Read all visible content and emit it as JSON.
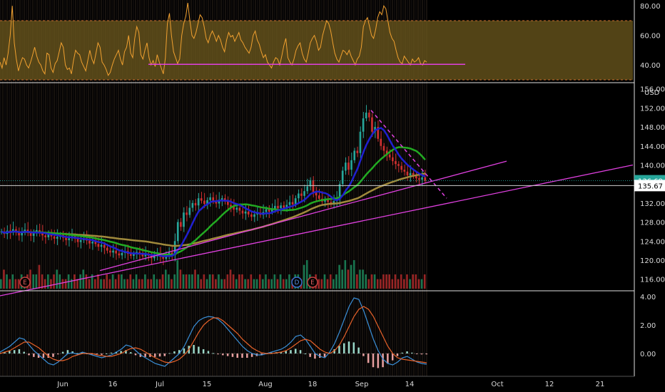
{
  "chart_data": [
    {
      "type": "line",
      "panel": "rsi",
      "yticks": [
        "80.00",
        "60.00",
        "40.00"
      ],
      "ylim": [
        30,
        83
      ],
      "band": [
        30,
        70
      ],
      "support_level": 40.5,
      "series": [
        {
          "color": "#f0a030",
          "values": [
            42,
            38,
            45,
            40,
            48,
            60,
            80,
            55,
            44,
            36,
            41,
            45,
            44,
            40,
            38,
            42,
            47,
            52,
            46,
            42,
            40,
            36,
            34,
            48,
            47,
            38,
            35,
            41,
            43,
            49,
            55,
            52,
            40,
            37,
            38,
            34,
            43,
            50,
            48,
            47,
            42,
            39,
            36,
            43,
            50,
            44,
            41,
            48,
            55,
            52,
            42,
            40,
            37,
            33,
            35,
            40,
            44,
            47,
            50,
            44,
            40,
            49,
            52,
            60,
            48,
            45,
            58,
            66,
            62,
            47,
            44,
            50,
            55,
            45,
            40,
            43,
            39,
            47,
            42,
            38,
            34,
            45,
            68,
            75,
            60,
            49,
            45,
            41,
            44,
            60,
            68,
            73,
            82,
            70,
            60,
            58,
            62,
            68,
            74,
            72,
            66,
            58,
            55,
            60,
            63,
            60,
            56,
            60,
            57,
            52,
            49,
            57,
            62,
            59,
            60,
            56,
            59,
            62,
            57,
            55,
            52,
            50,
            48,
            52,
            60,
            63,
            57,
            54,
            49,
            45,
            47,
            42,
            40,
            38,
            42,
            45,
            44,
            40,
            46,
            53,
            58,
            45,
            42,
            40,
            44,
            50,
            53,
            55,
            48,
            44,
            42,
            48,
            55,
            58,
            60,
            56,
            50,
            52,
            60,
            65,
            70,
            68,
            63,
            55,
            48,
            44,
            42,
            46,
            50,
            49,
            47,
            50,
            46,
            43,
            40,
            44,
            46,
            52,
            66,
            70,
            72,
            66,
            60,
            58,
            64,
            72,
            76,
            74,
            80,
            78,
            70,
            62,
            58,
            56,
            50,
            45,
            42,
            41,
            46,
            44,
            42,
            40,
            44,
            42,
            43,
            45,
            41,
            40,
            43,
            42
          ]
        }
      ]
    },
    {
      "type": "candlestick",
      "panel": "price",
      "currency": "USD",
      "yticks": [
        "156.00",
        "152.00",
        "148.00",
        "144.00",
        "140.00",
        "136.00",
        "132.00",
        "128.00",
        "124.00",
        "120.00",
        "116.00"
      ],
      "ylim": [
        114,
        157
      ],
      "last_price": 136.69,
      "last_price_label": "136.69",
      "crosshair_price": 135.67,
      "crosshair_label": "135.67",
      "earnings_markers": [
        "E",
        "D",
        "E"
      ],
      "close": [
        126,
        125.5,
        126.2,
        125.8,
        126.5,
        126,
        125.2,
        125.8,
        126.4,
        125.9,
        125.1,
        125.6,
        126.3,
        125.8,
        125.2,
        124.8,
        125.4,
        125,
        124.5,
        124.9,
        125.3,
        124.7,
        124.2,
        124.6,
        125,
        124.5,
        123.8,
        124.2,
        124.6,
        124.1,
        123.5,
        123.9,
        123.4,
        122.8,
        123.2,
        122.6,
        122,
        121.6,
        122,
        121.4,
        121,
        121.5,
        121.9,
        121.3,
        120.9,
        121.3,
        121.7,
        121.2,
        120.8,
        121.3,
        120.9,
        120.4,
        120.8,
        121.2,
        120.7,
        120.3,
        121,
        121.6,
        121.1,
        124,
        128,
        127,
        130,
        129.5,
        131,
        132,
        131.5,
        133,
        132.5,
        131.8,
        132.6,
        133.2,
        132.4,
        131.9,
        132.7,
        133,
        132.3,
        131.6,
        131.2,
        130.6,
        131,
        130.4,
        129.8,
        130.2,
        129.6,
        129.1,
        129.6,
        130,
        129.5,
        130.1,
        130.7,
        130.2,
        130.8,
        131.4,
        130.9,
        131.5,
        131,
        131.6,
        132.2,
        131.7,
        133,
        134,
        133.5,
        134.5,
        135.5,
        136.8,
        134.3,
        133.6,
        132.9,
        132.3,
        132.8,
        132.2,
        131.7,
        132.4,
        132.9,
        136,
        138.8,
        140.5,
        139,
        141,
        143,
        142.5,
        147,
        149.8,
        151,
        150,
        147,
        148,
        145.5,
        144,
        143,
        142.2,
        141.6,
        140.8,
        140.2,
        139.8,
        139,
        138.6,
        137.8,
        138.3,
        137.7,
        137.2,
        136.9,
        137.4,
        136.69
      ],
      "ema_fast_color": "#2020d0",
      "sma_mid_color": "#22aa22",
      "sma_slow_color": "#a08a3c",
      "trendline_color": "#e040e0",
      "volume": [
        2,
        4,
        3,
        2,
        3,
        2,
        2,
        3,
        2,
        3,
        4,
        3,
        3,
        5,
        3,
        2,
        3,
        2,
        3,
        4,
        3,
        2,
        2,
        3,
        2,
        3,
        2,
        3,
        4,
        3,
        2,
        3,
        2,
        3,
        2,
        2,
        3,
        2,
        3,
        2,
        3,
        3,
        2,
        2,
        3,
        2,
        3,
        2,
        2,
        3,
        2,
        2,
        3,
        2,
        2,
        3,
        4,
        3,
        2,
        3,
        6,
        4,
        3,
        3,
        3,
        3,
        4,
        3,
        2,
        3,
        2,
        3,
        3,
        2,
        3,
        2,
        2,
        3,
        4,
        3,
        2,
        3,
        3,
        2,
        2,
        3,
        2,
        2,
        3,
        2,
        3,
        2,
        2,
        3,
        2,
        3,
        2,
        2,
        3,
        2,
        3,
        3,
        2,
        5,
        6,
        3,
        2,
        3,
        2,
        2,
        3,
        2,
        3,
        2,
        3,
        5,
        4,
        6,
        4,
        5,
        6,
        3,
        4,
        4,
        3,
        2,
        3,
        3,
        2,
        2,
        3,
        3,
        3,
        2,
        3,
        2,
        3,
        2,
        3,
        2,
        3,
        3,
        2,
        2,
        3
      ]
    },
    {
      "type": "line",
      "panel": "macd",
      "yticks": [
        "4.00",
        "2.00",
        "0.00"
      ],
      "ylim": [
        -1.3,
        4.3
      ],
      "series": [
        {
          "color": "#3a8fd8",
          "values": [
            0.1,
            0.3,
            0.5,
            0.8,
            1.1,
            1.0,
            0.6,
            0.2,
            -0.1,
            -0.4,
            -0.7,
            -0.8,
            -0.6,
            -0.3,
            0.0,
            0.05,
            -0.05,
            0.1,
            0.0,
            -0.1,
            -0.2,
            -0.3,
            -0.2,
            -0.1,
            0.1,
            0.3,
            0.6,
            0.5,
            0.2,
            -0.1,
            -0.3,
            -0.5,
            -0.7,
            -0.8,
            -0.9,
            -0.6,
            -0.3,
            0.0,
            0.5,
            1.2,
            1.9,
            2.3,
            2.5,
            2.6,
            2.55,
            2.4,
            2.1,
            1.7,
            1.3,
            0.9,
            0.5,
            0.2,
            0.0,
            -0.1,
            -0.1,
            0.0,
            0.1,
            0.2,
            0.3,
            0.5,
            0.8,
            1.2,
            1.3,
            1.0,
            0.5,
            0.0,
            -0.2,
            -0.3,
            0.1,
            0.7,
            1.5,
            2.4,
            3.3,
            3.9,
            3.8,
            3.0,
            2.0,
            1.0,
            0.2,
            -0.4,
            -0.7,
            -0.8,
            -0.6,
            -0.3,
            -0.2,
            -0.4,
            -0.6,
            -0.7,
            -0.75
          ]
        },
        {
          "color": "#e8622a",
          "values": [
            0.0,
            0.1,
            0.2,
            0.4,
            0.6,
            0.8,
            0.8,
            0.6,
            0.4,
            0.1,
            -0.2,
            -0.4,
            -0.5,
            -0.5,
            -0.4,
            -0.2,
            -0.1,
            0.0,
            0.0,
            0.0,
            -0.1,
            -0.15,
            -0.2,
            -0.2,
            -0.1,
            0.0,
            0.2,
            0.35,
            0.4,
            0.3,
            0.1,
            -0.1,
            -0.3,
            -0.45,
            -0.6,
            -0.65,
            -0.55,
            -0.4,
            -0.1,
            0.3,
            0.9,
            1.5,
            2.0,
            2.3,
            2.5,
            2.5,
            2.3,
            2.0,
            1.7,
            1.4,
            1.0,
            0.7,
            0.4,
            0.2,
            0.05,
            0.0,
            0.0,
            0.05,
            0.1,
            0.2,
            0.4,
            0.65,
            0.9,
            1.0,
            0.9,
            0.6,
            0.3,
            0.1,
            0.0,
            0.2,
            0.6,
            1.2,
            1.9,
            2.6,
            3.1,
            3.3,
            3.1,
            2.6,
            1.9,
            1.2,
            0.5,
            0.0,
            -0.3,
            -0.4,
            -0.45,
            -0.5,
            -0.55,
            -0.6,
            -0.65
          ]
        }
      ]
    }
  ],
  "date_axis": {
    "ticks": [
      "Jun",
      "16",
      "Jul",
      "15",
      "Aug",
      "18",
      "Sep",
      "14",
      "Oct",
      "12",
      "21"
    ]
  }
}
